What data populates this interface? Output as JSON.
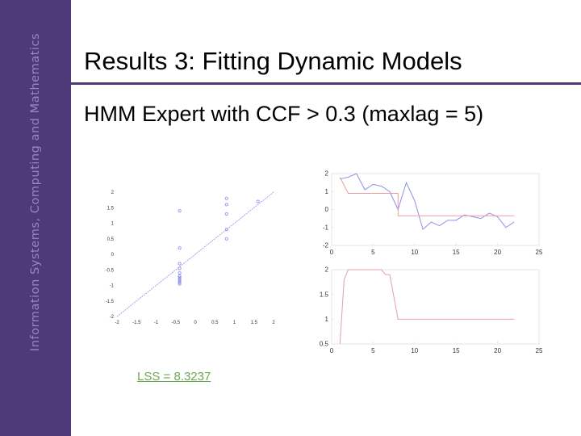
{
  "sidebar": {
    "text": "Information Systems, Computing and Mathematics"
  },
  "slide": {
    "title": "Results 3: Fitting Dynamic Models",
    "subtitle": "HMM Expert with CCF > 0.3 (maxlag = 5)",
    "lss_label": "LSS = 8.3237"
  },
  "colors": {
    "sidebar": "#4e3a78",
    "points": "#8f8fe8",
    "fit_line": "#8f8fe8",
    "series_blue": "#8f8fe8",
    "series_red": "#e8a0a0"
  },
  "chart_data": [
    {
      "type": "scatter",
      "title": "",
      "xlabel": "",
      "ylabel": "",
      "xlim": [
        -2,
        2
      ],
      "ylim": [
        -2,
        2
      ],
      "xticks": [
        "-2",
        "-1.5",
        "-1",
        "-0.5",
        "0",
        "0.5",
        "1",
        "1.5",
        "2"
      ],
      "yticks": [
        "-2",
        "-1.5",
        "-1",
        "-0.5",
        "0",
        "0.5",
        "1",
        "1.5",
        "2"
      ],
      "series": [
        {
          "x": [
            -0.4,
            -0.4,
            -0.4,
            -0.4,
            -0.4,
            -0.4,
            -0.4,
            -0.4,
            -0.4,
            -0.4,
            -0.4,
            0.8,
            0.8,
            0.8,
            0.8,
            0.8,
            1.6
          ],
          "y": [
            1.4,
            0.2,
            -0.3,
            -0.45,
            -0.6,
            -0.7,
            -0.75,
            -0.8,
            -0.85,
            -0.9,
            -0.95,
            1.8,
            1.6,
            1.3,
            0.8,
            0.5,
            1.7
          ]
        }
      ],
      "fit_line": {
        "x": [
          -2,
          2
        ],
        "y": [
          -2,
          2
        ]
      },
      "grid": false
    },
    {
      "type": "line",
      "title": "",
      "xlim": [
        0,
        25
      ],
      "ylim": [
        -2,
        2
      ],
      "xticks": [
        "0",
        "5",
        "10",
        "15",
        "20",
        "25"
      ],
      "yticks": [
        "-2",
        "-1",
        "0",
        "1",
        "2"
      ],
      "series": [
        {
          "x": [
            1,
            2,
            3,
            4,
            5,
            6,
            7,
            8,
            9,
            10,
            11,
            12,
            13,
            14,
            15,
            16,
            17,
            18,
            19,
            20,
            21,
            22
          ],
          "y": [
            1.7,
            1.8,
            2.0,
            1.1,
            1.4,
            1.3,
            1.0,
            0.0,
            1.5,
            0.5,
            -1.1,
            -0.7,
            -0.9,
            -0.6,
            -0.6,
            -0.3,
            -0.4,
            -0.5,
            -0.2,
            -0.4,
            -1.0,
            -0.7
          ]
        },
        {
          "x": [
            1,
            2,
            3,
            4,
            5,
            6,
            7,
            8,
            8,
            22
          ],
          "y": [
            1.8,
            0.9,
            0.9,
            0.9,
            0.9,
            0.9,
            0.9,
            0.9,
            -0.35,
            -0.35
          ]
        }
      ],
      "grid": false
    },
    {
      "type": "line",
      "title": "",
      "xlim": [
        0,
        25
      ],
      "ylim": [
        0.5,
        2
      ],
      "xticks": [
        "0",
        "5",
        "10",
        "15",
        "20",
        "25"
      ],
      "yticks": [
        "0.5",
        "1",
        "1.5",
        "2"
      ],
      "series": [
        {
          "x": [
            1,
            1.5,
            2,
            5,
            6,
            6.5,
            7,
            8,
            22
          ],
          "y": [
            0.5,
            1.8,
            2.0,
            2.0,
            2.0,
            1.9,
            1.9,
            1.0,
            1.0
          ]
        }
      ],
      "grid": false
    }
  ]
}
